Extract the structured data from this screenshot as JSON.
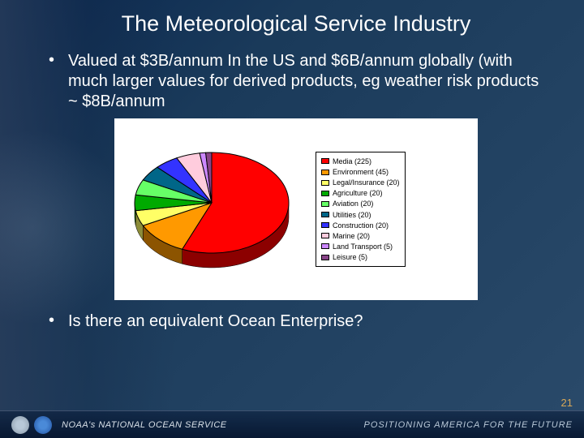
{
  "title": "The Meteorological Service Industry",
  "bullet1": "Valued at $3B/annum In the US and $6B/annum globally (with much larger values for derived products, eg weather risk products ~ $8B/annum",
  "bullet2": "Is there an equivalent Ocean Enterprise?",
  "pie": {
    "type": "pie",
    "background_color": "#ffffff",
    "slice_border_color": "#000000",
    "slice_border_width": 1,
    "label_fontsize": 9,
    "legend_border_color": "#000000",
    "tilt_3d": true,
    "slices": [
      {
        "label": "Media (225)",
        "value": 225,
        "color": "#ff0000"
      },
      {
        "label": "Environment (45)",
        "value": 45,
        "color": "#ff9900"
      },
      {
        "label": "Legal/Insurance (20)",
        "value": 20,
        "color": "#ffff66"
      },
      {
        "label": "Agriculture (20)",
        "value": 20,
        "color": "#00aa00"
      },
      {
        "label": "Aviation (20)",
        "value": 20,
        "color": "#66ff66"
      },
      {
        "label": "Utilities (20)",
        "value": 20,
        "color": "#006688"
      },
      {
        "label": "Construction (20)",
        "value": 20,
        "color": "#3333ff"
      },
      {
        "label": "Marine (20)",
        "value": 20,
        "color": "#ffccdd"
      },
      {
        "label": "Land Transport (5)",
        "value": 5,
        "color": "#cc88ff"
      },
      {
        "label": "Leisure (5)",
        "value": 5,
        "color": "#884488"
      }
    ]
  },
  "footer": {
    "left": "NOAA's NATIONAL OCEAN SERVICE",
    "right": "POSITIONING AMERICA FOR THE FUTURE"
  },
  "page_number": "21"
}
